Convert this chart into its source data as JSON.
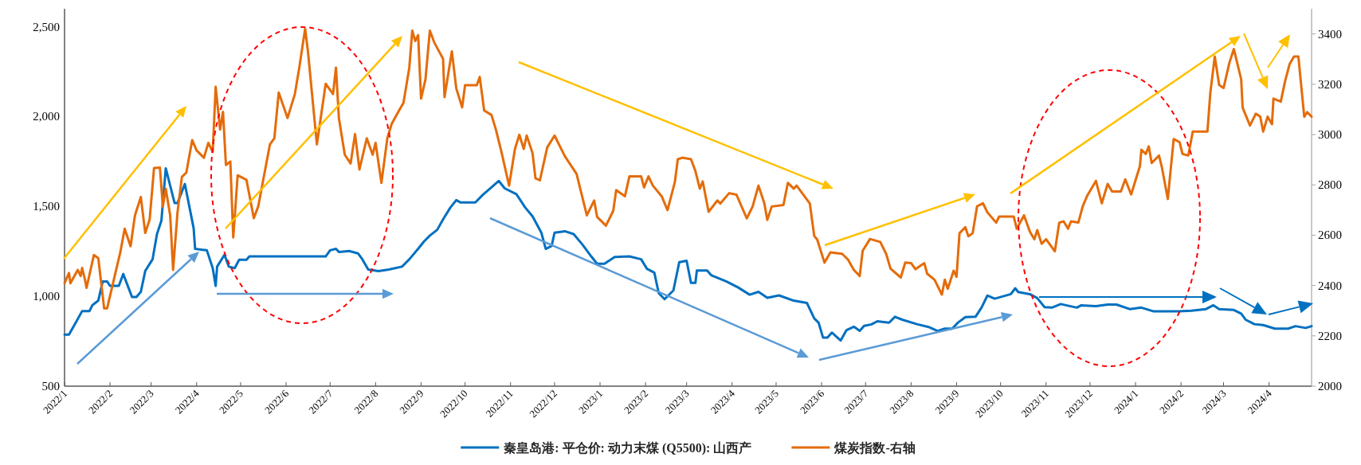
{
  "chart_data": {
    "type": "line",
    "legend": "bottom",
    "xlim": [
      "2022-01-01",
      "2024-04-30"
    ],
    "xticks": [
      {
        "value": "2022-01-01",
        "label": "2022/1"
      },
      {
        "value": "2022-02-01",
        "label": "2022/2"
      },
      {
        "value": "2022-03-01",
        "label": "2022/3"
      },
      {
        "value": "2022-04-01",
        "label": "2022/4"
      },
      {
        "value": "2022-05-01",
        "label": "2022/5"
      },
      {
        "value": "2022-06-01",
        "label": "2022/6"
      },
      {
        "value": "2022-07-01",
        "label": "2022/7"
      },
      {
        "value": "2022-08-01",
        "label": "2022/8"
      },
      {
        "value": "2022-09-01",
        "label": "2022/9"
      },
      {
        "value": "2022-10-01",
        "label": "2022/10"
      },
      {
        "value": "2022-11-01",
        "label": "2022/11"
      },
      {
        "value": "2022-12-01",
        "label": "2022/12"
      },
      {
        "value": "2023-01-01",
        "label": "2023/1"
      },
      {
        "value": "2023-02-01",
        "label": "2023/2"
      },
      {
        "value": "2023-03-01",
        "label": "2023/3"
      },
      {
        "value": "2023-04-01",
        "label": "2023/4"
      },
      {
        "value": "2023-05-01",
        "label": "2023/5"
      },
      {
        "value": "2023-06-01",
        "label": "2023/6"
      },
      {
        "value": "2023-07-01",
        "label": "2023/7"
      },
      {
        "value": "2023-08-01",
        "label": "2023/8"
      },
      {
        "value": "2023-09-01",
        "label": "2023/9"
      },
      {
        "value": "2023-10-01",
        "label": "2023/10"
      },
      {
        "value": "2023-11-01",
        "label": "2023/11"
      },
      {
        "value": "2023-12-01",
        "label": "2023/12"
      },
      {
        "value": "2024-01-01",
        "label": "2024/1"
      },
      {
        "value": "2024-02-01",
        "label": "2024/2"
      },
      {
        "value": "2024-03-01",
        "label": "2024/3"
      },
      {
        "value": "2024-04-01",
        "label": "2024/4"
      }
    ],
    "ylim": [
      500,
      2600
    ],
    "yticks": [
      {
        "value": 500,
        "label": "500"
      },
      {
        "value": 1000,
        "label": "1,000"
      },
      {
        "value": 1500,
        "label": "1,500"
      },
      {
        "value": 2000,
        "label": "2,000"
      },
      {
        "value": 2500,
        "label": "2,500"
      }
    ],
    "y2lim": [
      2000,
      3500
    ],
    "y2ticks": [
      2000,
      2200,
      2400,
      2600,
      2800,
      3000,
      3200,
      3400
    ],
    "series": [
      {
        "name": "秦皇岛港: 平仓价: 动力末煤 (Q5500): 山西产",
        "color": "#0070c0",
        "x": [
          "2022-01-01",
          "2022-01-04",
          "2022-01-08",
          "2022-01-13",
          "2022-01-18",
          "2022-01-20",
          "2022-01-24",
          "2022-01-27",
          "2022-01-30",
          "2022-02-01",
          "2022-02-07",
          "2022-02-10",
          "2022-02-16",
          "2022-02-19",
          "2022-02-22",
          "2022-02-25",
          "2022-03-02",
          "2022-03-05",
          "2022-03-08",
          "2022-03-11",
          "2022-03-17",
          "2022-03-19",
          "2022-03-24",
          "2022-03-30",
          "2022-03-31",
          "2022-04-08",
          "2022-04-12",
          "2022-04-14",
          "2022-04-15",
          "2022-04-20",
          "2022-04-23",
          "2022-04-27",
          "2022-04-30",
          "2022-05-05",
          "2022-05-07",
          "2022-06-28",
          "2022-07-01",
          "2022-07-05",
          "2022-07-07",
          "2022-07-14",
          "2022-07-20",
          "2022-07-23",
          "2022-07-27",
          "2022-08-03",
          "2022-08-10",
          "2022-08-19",
          "2022-08-24",
          "2022-08-30",
          "2022-09-03",
          "2022-09-07",
          "2022-09-12",
          "2022-09-16",
          "2022-09-21",
          "2022-09-25",
          "2022-09-28",
          "2022-10-08",
          "2022-10-13",
          "2022-10-20",
          "2022-10-24",
          "2022-10-28",
          "2022-11-05",
          "2022-11-11",
          "2022-11-16",
          "2022-11-22",
          "2022-11-25",
          "2022-11-29",
          "2022-12-01",
          "2022-12-08",
          "2022-12-14",
          "2022-12-20",
          "2022-12-26",
          "2022-12-30",
          "2023-01-04",
          "2023-01-11",
          "2023-01-21",
          "2023-01-29",
          "2023-02-02",
          "2023-02-07",
          "2023-02-10",
          "2023-02-14",
          "2023-02-20",
          "2023-02-24",
          "2023-03-01",
          "2023-03-04",
          "2023-03-07",
          "2023-03-08",
          "2023-03-15",
          "2023-03-18",
          "2023-03-28",
          "2023-04-05",
          "2023-04-13",
          "2023-04-19",
          "2023-04-25",
          "2023-05-03",
          "2023-05-13",
          "2023-05-22",
          "2023-05-27",
          "2023-05-30",
          "2023-06-02",
          "2023-06-05",
          "2023-06-08",
          "2023-06-14",
          "2023-06-18",
          "2023-06-23",
          "2023-06-27",
          "2023-06-30",
          "2023-07-05",
          "2023-07-09",
          "2023-07-17",
          "2023-07-21",
          "2023-07-26",
          "2023-08-05",
          "2023-08-13",
          "2023-08-19",
          "2023-08-24",
          "2023-08-29",
          "2023-09-02",
          "2023-09-07",
          "2023-09-14",
          "2023-09-18",
          "2023-09-22",
          "2023-09-27",
          "2023-10-08",
          "2023-10-11",
          "2023-10-13",
          "2023-10-21",
          "2023-10-26",
          "2023-10-31",
          "2023-11-05",
          "2023-11-11",
          "2023-11-22",
          "2023-11-25",
          "2023-12-05",
          "2023-12-13",
          "2023-12-19",
          "2023-12-28",
          "2024-01-05",
          "2024-01-13",
          "2024-01-30",
          "2024-02-08",
          "2024-02-18",
          "2024-02-23",
          "2024-02-27",
          "2024-03-08",
          "2024-03-13",
          "2024-03-16",
          "2024-03-22",
          "2024-03-28",
          "2024-04-05",
          "2024-04-14",
          "2024-04-19",
          "2024-04-26",
          "2024-04-30"
        ],
        "values": [
          787,
          787,
          844,
          918,
          918,
          951,
          976,
          1083,
          1083,
          1058,
          1058,
          1124,
          996,
          996,
          1025,
          1141,
          1206,
          1346,
          1420,
          1712,
          1519,
          1519,
          1625,
          1379,
          1264,
          1256,
          1157,
          1058,
          1165,
          1231,
          1165,
          1157,
          1203,
          1203,
          1222,
          1222,
          1256,
          1264,
          1247,
          1252,
          1239,
          1206,
          1149,
          1140,
          1149,
          1165,
          1206,
          1264,
          1305,
          1338,
          1370,
          1428,
          1494,
          1535,
          1522,
          1522,
          1564,
          1614,
          1642,
          1601,
          1568,
          1494,
          1445,
          1354,
          1264,
          1280,
          1354,
          1362,
          1346,
          1288,
          1222,
          1181,
          1181,
          1219,
          1222,
          1206,
          1153,
          1132,
          1017,
          984,
          1033,
          1190,
          1198,
          1075,
          1075,
          1144,
          1144,
          1116,
          1083,
          1050,
          1009,
          1025,
          992,
          1005,
          976,
          963,
          877,
          853,
          770,
          770,
          798,
          754,
          812,
          831,
          808,
          836,
          844,
          861,
          853,
          886,
          870,
          845,
          829,
          807,
          820,
          820,
          854,
          884,
          887,
          937,
          1004,
          987,
          1012,
          1045,
          1024,
          1012,
          990,
          940,
          937,
          957,
          937,
          950,
          945,
          954,
          954,
          929,
          937,
          917,
          917,
          920,
          929,
          950,
          929,
          924,
          904,
          870,
          845,
          840,
          820,
          820,
          834,
          824,
          834
        ]
      },
      {
        "name": "煤炭指数-右轴",
        "color": "#e46c0a",
        "axis": "y2",
        "x": [
          "2022-01-01",
          "2022-01-04",
          "2022-01-05",
          "2022-01-10",
          "2022-01-12",
          "2022-01-13",
          "2022-01-15",
          "2022-01-16",
          "2022-01-21",
          "2022-01-24",
          "2022-01-28",
          "2022-01-30",
          "2022-02-08",
          "2022-02-11",
          "2022-02-15",
          "2022-02-18",
          "2022-02-22",
          "2022-02-25",
          "2022-02-28",
          "2022-03-03",
          "2022-03-07",
          "2022-03-09",
          "2022-03-11",
          "2022-03-14",
          "2022-03-16",
          "2022-03-19",
          "2022-03-22",
          "2022-03-25",
          "2022-03-29",
          "2022-04-01",
          "2022-04-06",
          "2022-04-09",
          "2022-04-12",
          "2022-04-14",
          "2022-04-17",
          "2022-04-19",
          "2022-04-21",
          "2022-04-24",
          "2022-04-26",
          "2022-04-29",
          "2022-05-05",
          "2022-05-10",
          "2022-05-13",
          "2022-05-21",
          "2022-05-24",
          "2022-05-27",
          "2022-06-02",
          "2022-06-07",
          "2022-06-10",
          "2022-06-14",
          "2022-06-16",
          "2022-06-22",
          "2022-06-28",
          "2022-07-03",
          "2022-07-05",
          "2022-07-07",
          "2022-07-11",
          "2022-07-15",
          "2022-07-18",
          "2022-07-21",
          "2022-07-26",
          "2022-07-30",
          "2022-08-01",
          "2022-08-05",
          "2022-08-09",
          "2022-08-12",
          "2022-08-17",
          "2022-08-20",
          "2022-08-24",
          "2022-08-26",
          "2022-08-28",
          "2022-08-30",
          "2022-09-01",
          "2022-09-04",
          "2022-09-07",
          "2022-09-10",
          "2022-09-16",
          "2022-09-17",
          "2022-09-22",
          "2022-09-25",
          "2022-09-29",
          "2022-10-01",
          "2022-10-09",
          "2022-10-11",
          "2022-10-14",
          "2022-10-19",
          "2022-10-22",
          "2022-10-26",
          "2022-10-31",
          "2022-11-04",
          "2022-11-07",
          "2022-11-10",
          "2022-11-12",
          "2022-11-16",
          "2022-11-18",
          "2022-11-21",
          "2022-11-26",
          "2022-12-01",
          "2022-12-08",
          "2022-12-16",
          "2022-12-23",
          "2022-12-28",
          "2022-12-30",
          "2023-01-05",
          "2023-01-10",
          "2023-01-12",
          "2023-01-18",
          "2023-01-21",
          "2023-01-29",
          "2023-01-31",
          "2023-02-03",
          "2023-02-06",
          "2023-02-12",
          "2023-02-16",
          "2023-02-21",
          "2023-02-23",
          "2023-02-26",
          "2023-03-04",
          "2023-03-07",
          "2023-03-10",
          "2023-03-12",
          "2023-03-16",
          "2023-03-22",
          "2023-03-24",
          "2023-03-30",
          "2023-04-04",
          "2023-04-11",
          "2023-04-15",
          "2023-04-19",
          "2023-04-23",
          "2023-04-25",
          "2023-04-28",
          "2023-05-06",
          "2023-05-09",
          "2023-05-13",
          "2023-05-15",
          "2023-05-24",
          "2023-05-27",
          "2023-05-29",
          "2023-06-03",
          "2023-06-07",
          "2023-06-15",
          "2023-06-19",
          "2023-06-23",
          "2023-06-27",
          "2023-06-29",
          "2023-07-04",
          "2023-07-11",
          "2023-07-15",
          "2023-07-18",
          "2023-07-25",
          "2023-07-28",
          "2023-08-01",
          "2023-08-04",
          "2023-08-10",
          "2023-08-12",
          "2023-08-17",
          "2023-08-22",
          "2023-08-24",
          "2023-08-26",
          "2023-08-30",
          "2023-09-01",
          "2023-09-03",
          "2023-09-07",
          "2023-09-09",
          "2023-09-12",
          "2023-09-15",
          "2023-09-19",
          "2023-09-22",
          "2023-09-28",
          "2023-09-30",
          "2023-10-10",
          "2023-10-12",
          "2023-10-17",
          "2023-10-21",
          "2023-10-24",
          "2023-10-26",
          "2023-10-29",
          "2023-11-01",
          "2023-11-07",
          "2023-11-10",
          "2023-11-13",
          "2023-11-16",
          "2023-11-18",
          "2023-11-23",
          "2023-11-26",
          "2023-11-29",
          "2023-12-05",
          "2023-12-09",
          "2023-12-13",
          "2023-12-16",
          "2023-12-22",
          "2023-12-25",
          "2023-12-29",
          "2024-01-04",
          "2024-01-05",
          "2024-01-08",
          "2024-01-10",
          "2024-01-12",
          "2024-01-17",
          "2024-01-19",
          "2024-01-23",
          "2024-01-27",
          "2024-01-31",
          "2024-02-02",
          "2024-02-06",
          "2024-02-09",
          "2024-02-19",
          "2024-02-21",
          "2024-02-24",
          "2024-02-27",
          "2024-03-01",
          "2024-03-05",
          "2024-03-08",
          "2024-03-13",
          "2024-03-14",
          "2024-03-19",
          "2024-03-23",
          "2024-03-26",
          "2024-03-28",
          "2024-03-31",
          "2024-04-03",
          "2024-04-04",
          "2024-04-09",
          "2024-04-12",
          "2024-04-15",
          "2024-04-18",
          "2024-04-21",
          "2024-04-25",
          "2024-04-27",
          "2024-04-30"
        ],
        "values": [
          2409,
          2450,
          2409,
          2462,
          2438,
          2470,
          2421,
          2391,
          2521,
          2509,
          2309,
          2309,
          2532,
          2626,
          2556,
          2679,
          2752,
          2609,
          2662,
          2867,
          2869,
          2714,
          2785,
          2679,
          2462,
          2691,
          2832,
          2849,
          2978,
          2937,
          2908,
          2967,
          2931,
          3190,
          3020,
          3090,
          2879,
          2893,
          2591,
          2838,
          2820,
          2668,
          2714,
          2961,
          2985,
          3167,
          3066,
          3161,
          3266,
          3421,
          3325,
          2961,
          3202,
          3161,
          3266,
          3066,
          2920,
          2885,
          3002,
          2861,
          2985,
          2920,
          2967,
          2808,
          2985,
          3043,
          3096,
          3126,
          3266,
          3413,
          3372,
          3395,
          3143,
          3219,
          3413,
          3366,
          3301,
          3149,
          3331,
          3184,
          3108,
          3196,
          3196,
          3229,
          3096,
          3078,
          3020,
          2926,
          2797,
          2943,
          2999,
          2943,
          2996,
          2926,
          2826,
          2818,
          2949,
          2996,
          2914,
          2844,
          2679,
          2738,
          2673,
          2638,
          2697,
          2779,
          2755,
          2834,
          2834,
          2790,
          2834,
          2797,
          2755,
          2700,
          2811,
          2902,
          2908,
          2902,
          2855,
          2785,
          2814,
          2693,
          2738,
          2726,
          2767,
          2761,
          2667,
          2714,
          2797,
          2726,
          2661,
          2714,
          2720,
          2808,
          2785,
          2797,
          2726,
          2597,
          2583,
          2491,
          2532,
          2526,
          2503,
          2462,
          2438,
          2538,
          2585,
          2573,
          2526,
          2467,
          2432,
          2491,
          2489,
          2465,
          2489,
          2447,
          2423,
          2364,
          2423,
          2387,
          2459,
          2435,
          2608,
          2632,
          2596,
          2608,
          2715,
          2727,
          2691,
          2650,
          2674,
          2674,
          2626,
          2679,
          2614,
          2584,
          2620,
          2566,
          2584,
          2536,
          2650,
          2655,
          2626,
          2655,
          2650,
          2715,
          2756,
          2816,
          2727,
          2804,
          2774,
          2774,
          2822,
          2762,
          2875,
          2940,
          2923,
          2953,
          2887,
          2917,
          2869,
          2744,
          2982,
          2970,
          2923,
          2917,
          3012,
          3012,
          3167,
          3310,
          3197,
          3185,
          3286,
          3340,
          3220,
          3107,
          3036,
          3083,
          3071,
          3012,
          3071,
          3041,
          3143,
          3131,
          3214,
          3280,
          3310,
          3310,
          3071,
          3089,
          3071
        ]
      }
    ]
  }
}
